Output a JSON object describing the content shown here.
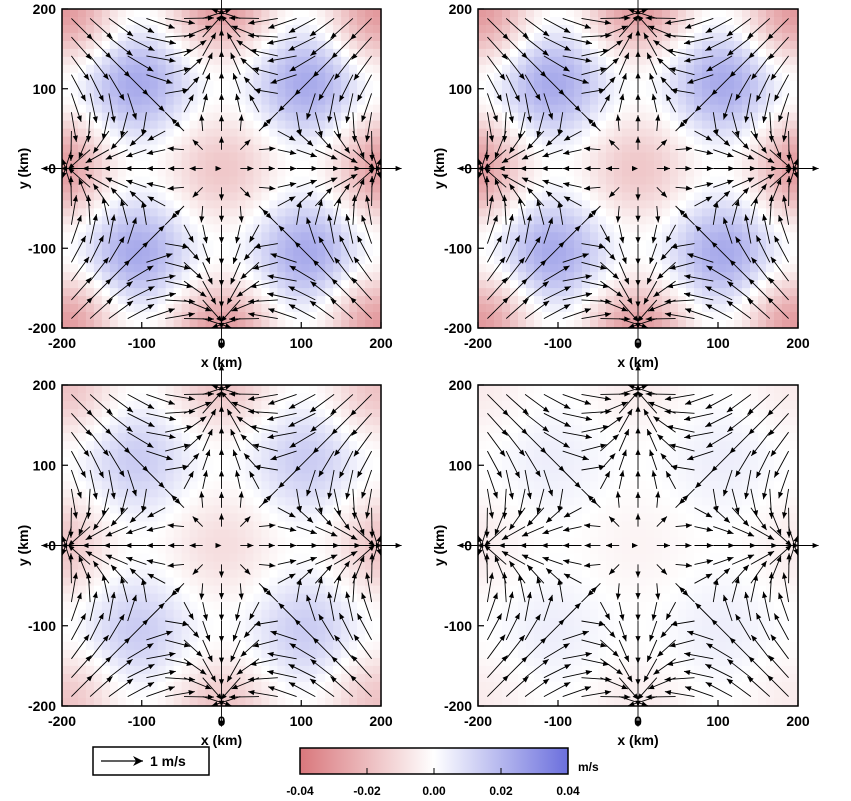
{
  "chart_data": [
    {
      "type": "heatmap",
      "panel": "top-left",
      "overlay": "vector-field",
      "xlabel": "x (km)",
      "ylabel": "y (km)",
      "xlim": [
        -200,
        200
      ],
      "ylim": [
        -200,
        200
      ],
      "xticks": [
        "-200",
        "-100",
        "0",
        "100",
        "200"
      ],
      "yticks": [
        "200",
        "100",
        "0",
        "-100",
        "-200"
      ],
      "field_amplitude": 0.03,
      "arrow_speed_max": 1.1
    },
    {
      "type": "heatmap",
      "panel": "top-right",
      "overlay": "vector-field",
      "xlabel": "x (km)",
      "ylabel": "y (km)",
      "xlim": [
        -200,
        200
      ],
      "ylim": [
        -200,
        200
      ],
      "xticks": [
        "-200",
        "-100",
        "0",
        "100",
        "200"
      ],
      "yticks": [
        "200",
        "100",
        "0",
        "-100",
        "-200"
      ],
      "field_amplitude": 0.03,
      "arrow_speed_max": 1.1
    },
    {
      "type": "heatmap",
      "panel": "bottom-left",
      "overlay": "vector-field",
      "xlabel": "x (km)",
      "ylabel": "y (km)",
      "xlim": [
        -200,
        200
      ],
      "ylim": [
        -200,
        200
      ],
      "xticks": [
        "-200",
        "-100",
        "0",
        "100",
        "200"
      ],
      "yticks": [
        "200",
        "100",
        "0",
        "-100",
        "-200"
      ],
      "field_amplitude": 0.018,
      "arrow_speed_max": 1.1
    },
    {
      "type": "heatmap",
      "panel": "bottom-right",
      "overlay": "vector-field",
      "xlabel": "x (km)",
      "ylabel": "y (km)",
      "xlim": [
        -200,
        200
      ],
      "ylim": [
        -200,
        200
      ],
      "xticks": [
        "-200",
        "-100",
        "0",
        "100",
        "200"
      ],
      "yticks": [
        "200",
        "100",
        "0",
        "-100",
        "-200"
      ],
      "field_amplitude": 0.006,
      "arrow_speed_max": 1.1
    }
  ],
  "vector_legend": {
    "label": "1 m/s",
    "speed": 1
  },
  "colorbar": {
    "unit": "m/s",
    "range": [
      -0.04,
      0.04
    ],
    "ticks": [
      "-0.04",
      "-0.02",
      "0.00",
      "0.02",
      "0.04"
    ],
    "tick_values": [
      -0.04,
      -0.02,
      0.0,
      0.02,
      0.04
    ],
    "colors": {
      "negative": "#d9777c",
      "zero": "#ffffff",
      "positive": "#6b6fdd"
    }
  }
}
